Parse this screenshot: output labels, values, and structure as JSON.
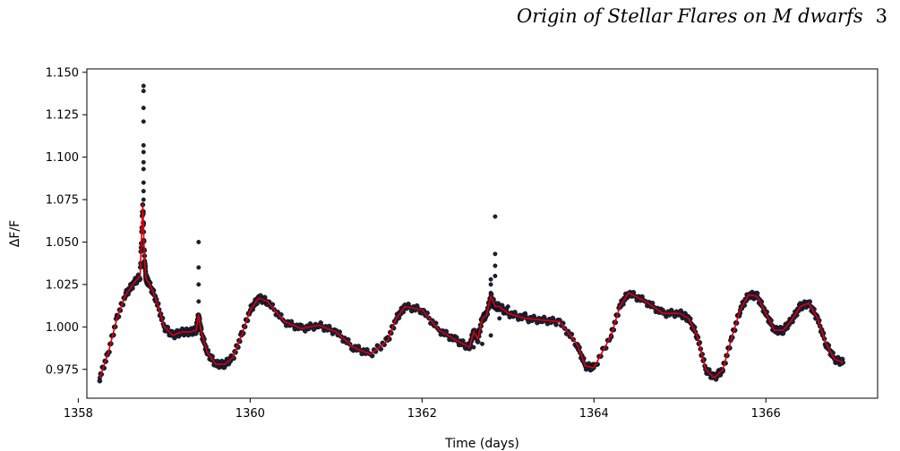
{
  "header": {
    "running_title": "Origin of Stellar Flares on M dwarfs",
    "page_number": "3"
  },
  "colors": {
    "points": "#1f1f3a",
    "model_line": "#e00000",
    "axes": "#000000"
  },
  "chart_data": {
    "type": "scatter",
    "xlabel": "Time (days)",
    "ylabel": "ΔF/F",
    "xlim": [
      1358.1,
      1367.3
    ],
    "ylim": [
      0.958,
      1.152
    ],
    "xticks": [
      1358,
      1360,
      1362,
      1364,
      1366
    ],
    "yticks": [
      0.975,
      1.0,
      1.025,
      1.05,
      1.075,
      1.1,
      1.125,
      1.15
    ],
    "ytick_labels": [
      "0.975",
      "1.000",
      "1.025",
      "1.050",
      "1.075",
      "1.100",
      "1.125",
      "1.150"
    ],
    "grid": false,
    "series": [
      {
        "kind": "scatter",
        "description_points": "light curve observations",
        "color": "#1f1f3a",
        "x": [
          1358.25,
          1358.35,
          1358.45,
          1358.55,
          1358.65,
          1358.7,
          1358.8,
          1358.9,
          1359.0,
          1359.1,
          1359.2,
          1359.3,
          1359.4,
          1359.5,
          1359.6,
          1359.7,
          1359.8,
          1359.9,
          1360.0,
          1360.1,
          1360.2,
          1360.4,
          1360.6,
          1360.8,
          1361.0,
          1361.2,
          1361.4,
          1361.6,
          1361.7,
          1361.8,
          1362.0,
          1362.2,
          1362.4,
          1362.5,
          1362.6,
          1362.7,
          1362.8,
          1362.9,
          1363.0,
          1363.2,
          1363.4,
          1363.6,
          1363.8,
          1363.9,
          1364.0,
          1364.2,
          1364.3,
          1364.4,
          1364.6,
          1364.8,
          1365.0,
          1365.1,
          1365.2,
          1365.3,
          1365.4,
          1365.5,
          1365.6,
          1365.7,
          1365.8,
          1365.9,
          1366.0,
          1366.1,
          1366.2,
          1366.3,
          1366.4,
          1366.5,
          1366.6,
          1366.7,
          1366.8,
          1366.9
        ],
        "y": [
          0.97,
          0.985,
          1.005,
          1.02,
          1.027,
          1.03,
          1.03,
          1.018,
          1.0,
          0.995,
          0.997,
          0.998,
          0.998,
          0.985,
          0.978,
          0.978,
          0.982,
          0.995,
          1.01,
          1.017,
          1.015,
          1.003,
          0.999,
          1.001,
          0.997,
          0.988,
          0.984,
          0.992,
          1.005,
          1.012,
          1.01,
          0.998,
          0.992,
          0.988,
          0.988,
          0.99,
          0.995,
          1.005,
          1.012,
          1.008,
          1.005,
          1.004,
          0.99,
          0.977,
          0.976,
          0.995,
          1.012,
          1.02,
          1.015,
          1.008,
          1.008,
          1.005,
          0.995,
          0.975,
          0.97,
          0.975,
          0.993,
          1.01,
          1.019,
          1.018,
          1.008,
          0.998,
          0.998,
          1.004,
          1.012,
          1.014,
          1.005,
          0.99,
          0.981,
          0.979
        ]
      },
      {
        "kind": "scatter",
        "description_points": "flare points",
        "color": "#1f1f3a",
        "x": [
          1358.76,
          1358.76,
          1358.76,
          1358.76,
          1358.76,
          1358.76,
          1358.76,
          1358.76,
          1358.76,
          1358.76,
          1358.76,
          1358.76,
          1358.76,
          1358.76,
          1358.76,
          1359.4,
          1359.4,
          1359.4,
          1359.4,
          1362.8,
          1362.8,
          1362.8,
          1362.8,
          1362.8,
          1362.8,
          1362.85,
          1362.85,
          1362.85,
          1362.85
        ],
        "y": [
          1.142,
          1.139,
          1.129,
          1.121,
          1.107,
          1.103,
          1.097,
          1.093,
          1.085,
          1.08,
          1.075,
          1.068,
          1.06,
          1.05,
          1.045,
          1.05,
          1.035,
          1.025,
          1.015,
          1.028,
          1.025,
          1.02,
          1.018,
          1.015,
          1.012,
          1.065,
          1.043,
          1.036,
          1.03
        ]
      },
      {
        "kind": "line",
        "description_points": "model fit",
        "color": "#e00000",
        "x": [
          1358.25,
          1358.35,
          1358.45,
          1358.55,
          1358.65,
          1358.72,
          1358.75,
          1358.77,
          1358.79,
          1358.82,
          1358.9,
          1359.0,
          1359.1,
          1359.2,
          1359.3,
          1359.37,
          1359.4,
          1359.43,
          1359.5,
          1359.6,
          1359.7,
          1359.8,
          1359.9,
          1360.0,
          1360.1,
          1360.2,
          1360.4,
          1360.6,
          1360.8,
          1361.0,
          1361.2,
          1361.4,
          1361.6,
          1361.7,
          1361.8,
          1362.0,
          1362.2,
          1362.4,
          1362.55,
          1362.6,
          1362.65,
          1362.7,
          1362.75,
          1362.8,
          1362.85,
          1362.9,
          1363.0,
          1363.2,
          1363.4,
          1363.6,
          1363.8,
          1363.9,
          1364.0,
          1364.2,
          1364.3,
          1364.4,
          1364.6,
          1364.8,
          1365.0,
          1365.1,
          1365.2,
          1365.3,
          1365.4,
          1365.5,
          1365.6,
          1365.7,
          1365.8,
          1365.9,
          1366.0,
          1366.1,
          1366.2,
          1366.3,
          1366.4,
          1366.5,
          1366.6,
          1366.7,
          1366.8,
          1366.9
        ],
        "y": [
          0.97,
          0.985,
          1.005,
          1.019,
          1.026,
          1.03,
          1.072,
          1.04,
          1.028,
          1.026,
          1.017,
          1.0,
          0.995,
          0.997,
          0.997,
          0.998,
          1.007,
          0.997,
          0.985,
          0.978,
          0.978,
          0.982,
          0.995,
          1.01,
          1.017,
          1.015,
          1.003,
          0.999,
          1.001,
          0.997,
          0.988,
          0.984,
          0.992,
          1.005,
          1.012,
          1.01,
          0.998,
          0.992,
          0.988,
          0.997,
          0.993,
          1.005,
          1.007,
          1.018,
          1.012,
          1.012,
          1.008,
          1.005,
          1.004,
          1.003,
          0.99,
          0.977,
          0.976,
          0.995,
          1.012,
          1.02,
          1.015,
          1.008,
          1.008,
          1.005,
          0.995,
          0.975,
          0.97,
          0.975,
          0.993,
          1.01,
          1.019,
          1.018,
          1.008,
          0.998,
          0.998,
          1.004,
          1.012,
          1.014,
          1.005,
          0.99,
          0.981,
          0.979
        ]
      }
    ]
  }
}
